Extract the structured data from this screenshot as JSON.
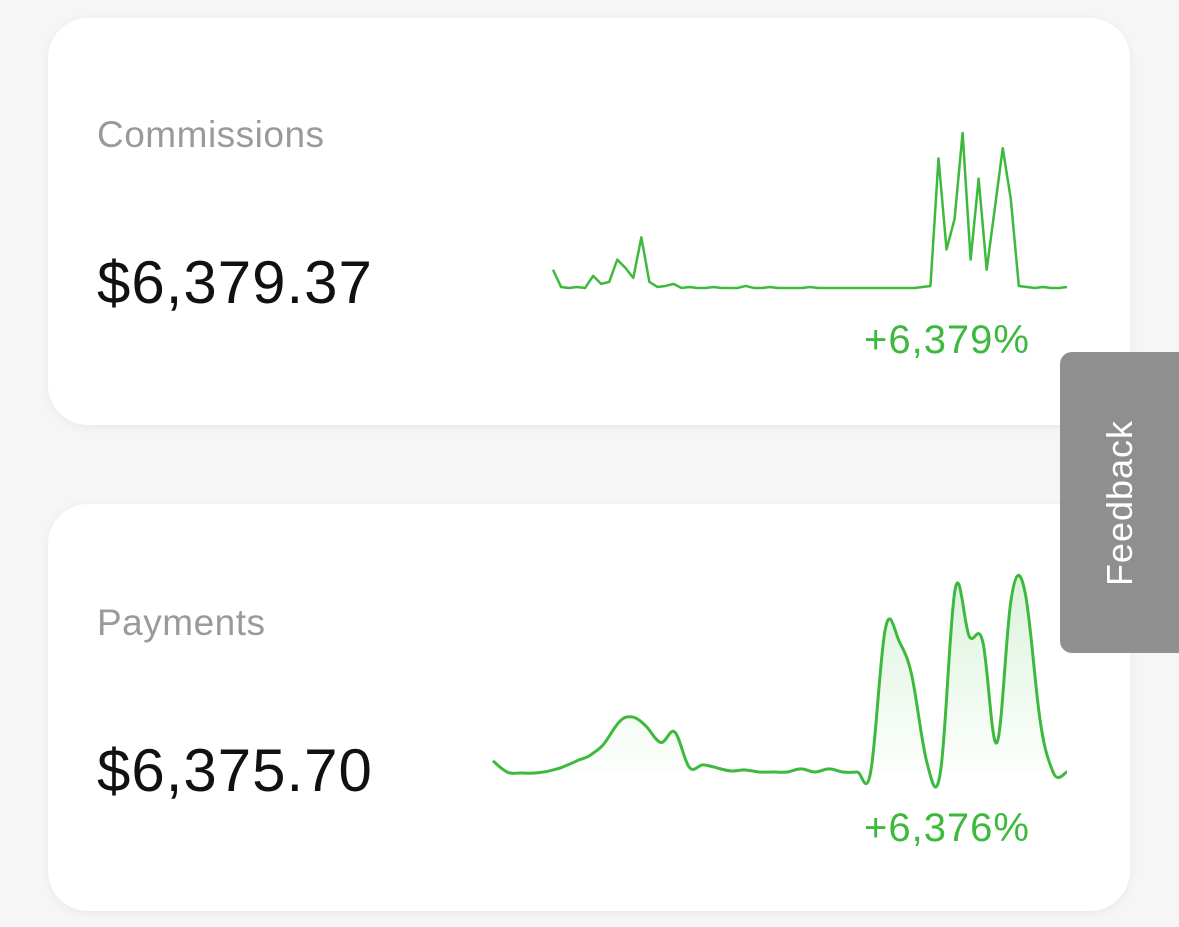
{
  "cards": [
    {
      "label": "Commissions",
      "amount": "$6,379.37",
      "change": "+6,379%",
      "sparkline": {
        "type": "line",
        "color": "#3dba3d",
        "fill": false,
        "values": [
          20,
          3,
          2,
          3,
          2,
          14,
          6,
          8,
          30,
          22,
          12,
          52,
          8,
          3,
          4,
          6,
          2,
          3,
          2,
          2,
          3,
          2,
          2,
          2,
          4,
          2,
          2,
          3,
          2,
          2,
          2,
          2,
          3,
          2,
          2,
          2,
          2,
          2,
          2,
          2,
          2,
          2,
          2,
          2,
          2,
          2,
          3,
          4,
          130,
          40,
          70,
          155,
          30,
          110,
          20,
          80,
          140,
          90,
          4,
          3,
          2,
          3,
          2,
          2,
          3
        ]
      }
    },
    {
      "label": "Payments",
      "amount": "$6,375.70",
      "change": "+6,376%",
      "sparkline": {
        "type": "area",
        "color": "#3dba3d",
        "fill": true,
        "values": [
          12,
          1,
          0,
          0,
          2,
          6,
          12,
          18,
          30,
          50,
          55,
          45,
          30,
          40,
          6,
          8,
          5,
          2,
          3,
          1,
          1,
          1,
          4,
          1,
          4,
          1,
          1,
          3,
          140,
          130,
          90,
          10,
          5,
          180,
          135,
          128,
          30,
          170,
          178,
          60,
          1,
          1
        ]
      }
    }
  ],
  "feedback": "Feedback"
}
